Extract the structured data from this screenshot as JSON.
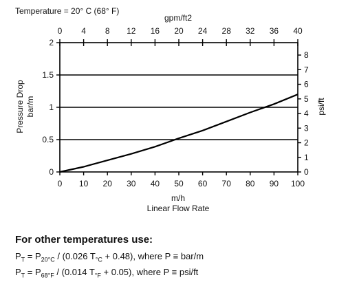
{
  "chart_data": {
    "type": "line",
    "condition_label": "Temperature = 20° C (68° F)",
    "x_bottom": {
      "label": "m/h",
      "label2": "Linear Flow Rate",
      "range": [
        0,
        100
      ],
      "ticks": [
        0,
        10,
        20,
        30,
        40,
        50,
        60,
        70,
        80,
        90,
        100
      ]
    },
    "x_top": {
      "label": "gpm/ft2",
      "range": [
        0,
        40
      ],
      "ticks": [
        0,
        4,
        8,
        12,
        16,
        20,
        24,
        28,
        32,
        36,
        40
      ]
    },
    "y_left": {
      "label": "Pressure Drop",
      "label2": "bar/m",
      "range": [
        0,
        2
      ],
      "ticks": [
        0,
        0.5,
        1,
        1.5,
        2
      ],
      "tick_labels": [
        "0",
        "0.5",
        "1",
        "1.5",
        "2"
      ]
    },
    "y_right": {
      "label": "psi/ft",
      "range": [
        0,
        8.85
      ],
      "ticks": [
        0,
        1,
        2,
        3,
        4,
        5,
        6,
        7,
        8
      ]
    },
    "grid": "horizontal",
    "series": [
      {
        "x": [
          0,
          10,
          20,
          30,
          40,
          50,
          60,
          70,
          80,
          90,
          100
        ],
        "y": [
          0,
          0.08,
          0.18,
          0.28,
          0.39,
          0.52,
          0.64,
          0.78,
          0.92,
          1.05,
          1.2
        ]
      }
    ]
  },
  "notes": {
    "heading": "For other temperatures use:",
    "formula1": {
      "p": "P",
      "p_sub": "T",
      "eq": " = P",
      "p2_sub": "20°C",
      "mid": " / (0.026 T",
      "t_sub": "°C",
      "tail": " + 0.48), where P ≡ bar/m"
    },
    "formula2": {
      "p": "P",
      "p_sub": "T",
      "eq": " = P",
      "p2_sub": "68°F",
      "mid": " / (0.014 T",
      "t_sub": "°F",
      "tail": " + 0.05), where P ≡ psi/ft"
    }
  }
}
